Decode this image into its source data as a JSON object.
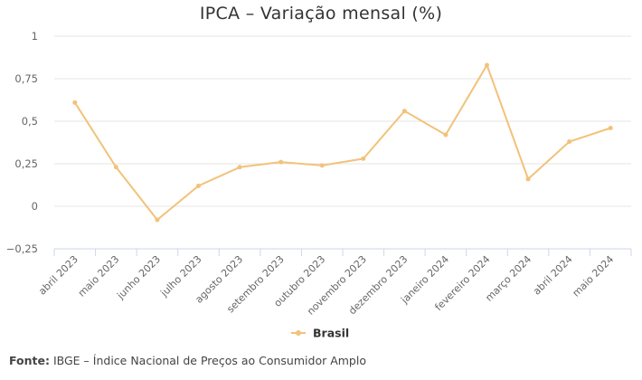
{
  "chart_data": {
    "type": "line",
    "title": "IPCA – Variação mensal (%)",
    "categories": [
      "abril 2023",
      "maio 2023",
      "junho 2023",
      "julho 2023",
      "agosto 2023",
      "setembro 2023",
      "outubro 2023",
      "novembro 2023",
      "dezembro 2023",
      "janeiro 2024",
      "fevereiro 2024",
      "março 2024",
      "abril 2024",
      "maio 2024"
    ],
    "series": [
      {
        "name": "Brasil",
        "values": [
          0.61,
          0.23,
          -0.08,
          0.12,
          0.23,
          0.26,
          0.24,
          0.28,
          0.56,
          0.42,
          0.83,
          0.16,
          0.38,
          0.46
        ]
      }
    ],
    "ylim": [
      -0.25,
      1
    ],
    "yticks": [
      -0.25,
      0,
      0.25,
      0.5,
      0.75,
      1
    ],
    "ytick_labels": [
      "−0,25",
      "0",
      "0,25",
      "0,5",
      "0,75",
      "1"
    ],
    "grid": true,
    "legend_position": "bottom",
    "line_color": "#f2c27a"
  },
  "source": {
    "label": "Fonte:",
    "text": " IBGE – Índice Nacional de Preços ao Consumidor Amplo"
  }
}
